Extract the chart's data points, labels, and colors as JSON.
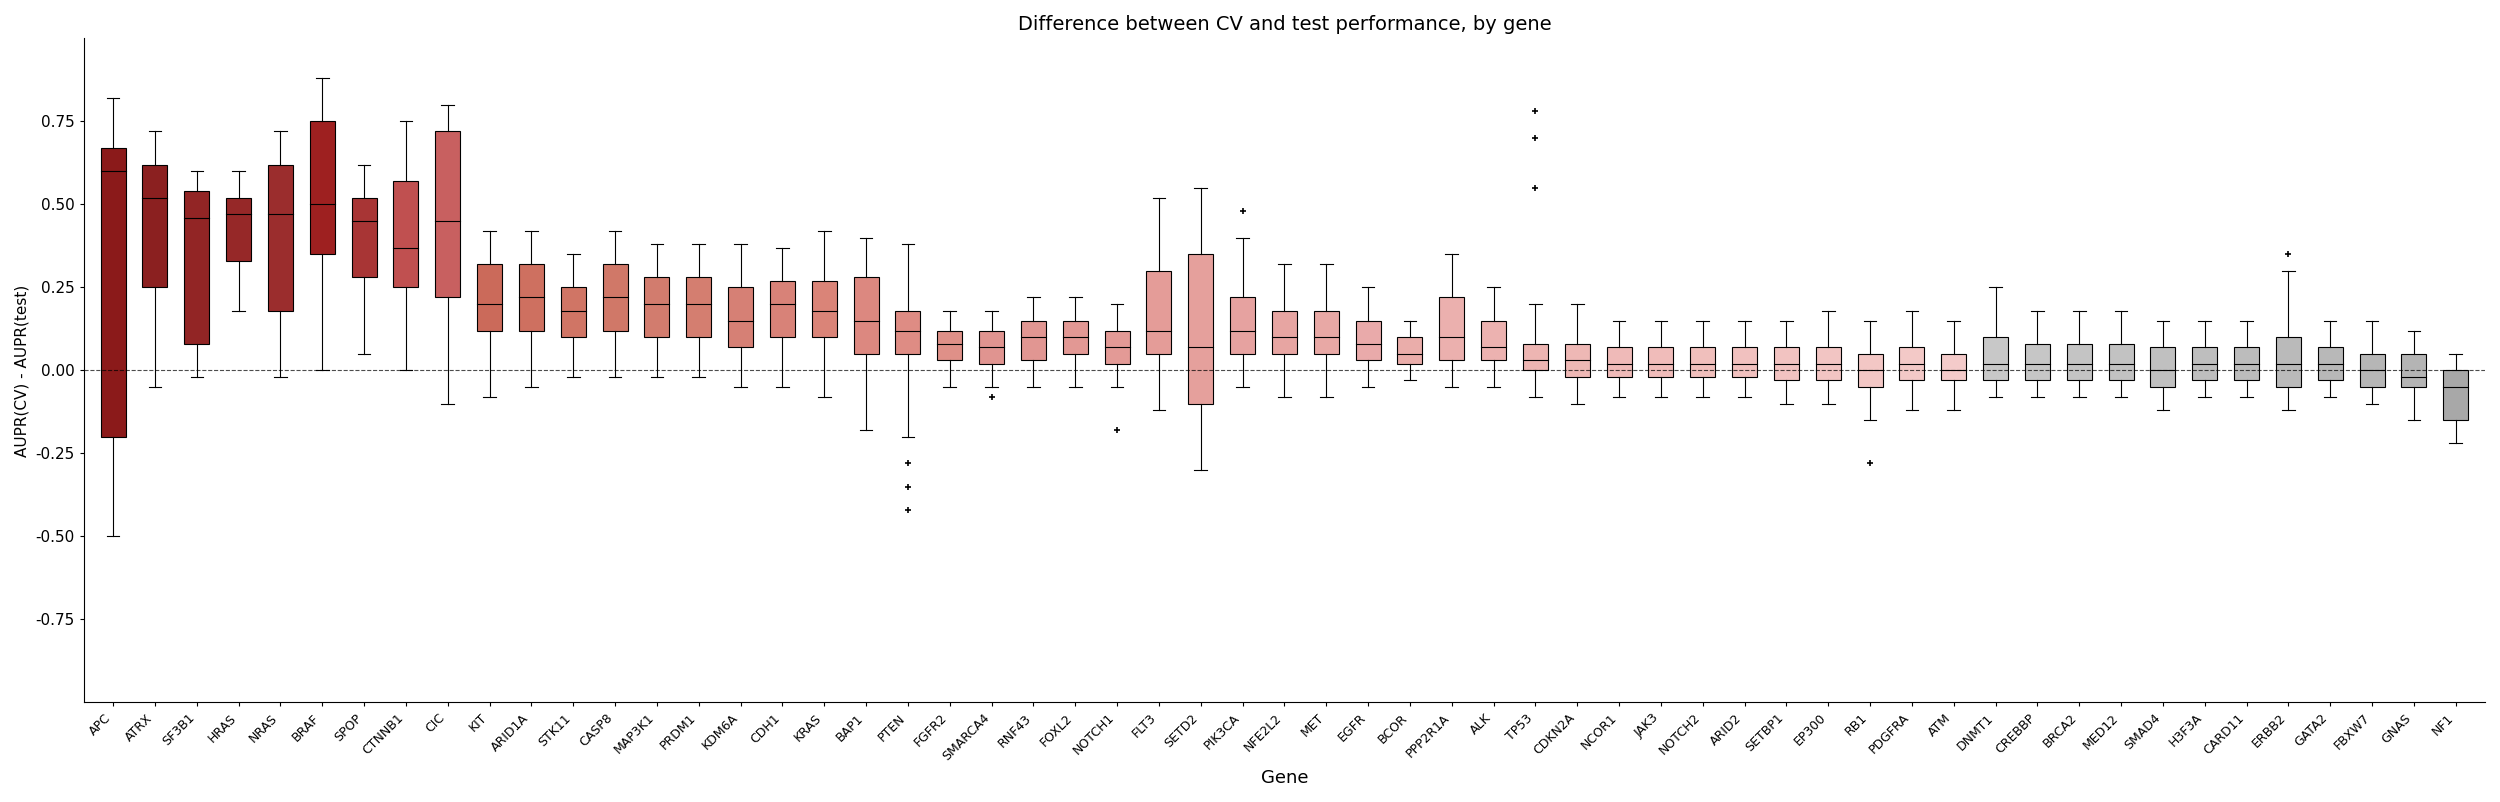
{
  "title": "Difference between CV and test performance, by gene",
  "xlabel": "Gene",
  "ylabel": "AUPR(CV) - AUPR(test)",
  "ylim": [
    -1.0,
    1.0
  ],
  "yticks": [
    -0.75,
    -0.5,
    -0.25,
    0.0,
    0.25,
    0.5,
    0.75
  ],
  "genes": [
    "APC",
    "ATRX",
    "SF3B1",
    "HRAS",
    "NRAS",
    "BRAF",
    "SPOP",
    "CTNNB1",
    "CIC",
    "KIT",
    "ARID1A",
    "STK11",
    "CASP8",
    "MAP3K1",
    "PRDM1",
    "KDM6A",
    "CDH1",
    "KRAS",
    "BAP1",
    "PTEN",
    "FGFR2",
    "SMARCA4",
    "RNF43",
    "FOXL2",
    "NOTCH1",
    "FLT3",
    "SETD2",
    "PIK3CA",
    "NFE2L2",
    "MET",
    "EGFR",
    "BCOR",
    "PPP2R1A",
    "ALK",
    "TP53",
    "CDKN2A",
    "NCOR1",
    "JAK3",
    "NOTCH2",
    "ARID2",
    "SETBP1",
    "EP300",
    "RB1",
    "PDGFRA",
    "ATM",
    "DNMT1",
    "CREBBP",
    "BRCA2",
    "MED12",
    "SMAD4",
    "H3F3A",
    "CARD11",
    "ERBB2",
    "GATA2",
    "FBXW7",
    "GNAS",
    "NF1"
  ],
  "box_data": {
    "APC": {
      "q1": -0.2,
      "median": 0.6,
      "q3": 0.67,
      "whislo": -0.5,
      "whishi": 0.82,
      "fliers": []
    },
    "ATRX": {
      "q1": 0.25,
      "median": 0.52,
      "q3": 0.62,
      "whislo": -0.05,
      "whishi": 0.72,
      "fliers": []
    },
    "SF3B1": {
      "q1": 0.08,
      "median": 0.46,
      "q3": 0.54,
      "whislo": -0.02,
      "whishi": 0.6,
      "fliers": []
    },
    "HRAS": {
      "q1": 0.33,
      "median": 0.47,
      "q3": 0.52,
      "whislo": 0.18,
      "whishi": 0.6,
      "fliers": []
    },
    "NRAS": {
      "q1": 0.18,
      "median": 0.47,
      "q3": 0.62,
      "whislo": -0.02,
      "whishi": 0.72,
      "fliers": []
    },
    "BRAF": {
      "q1": 0.35,
      "median": 0.5,
      "q3": 0.75,
      "whislo": 0.0,
      "whishi": 0.88,
      "fliers": []
    },
    "SPOP": {
      "q1": 0.28,
      "median": 0.45,
      "q3": 0.52,
      "whislo": 0.05,
      "whishi": 0.62,
      "fliers": []
    },
    "CTNNB1": {
      "q1": 0.25,
      "median": 0.37,
      "q3": 0.57,
      "whislo": 0.0,
      "whishi": 0.75,
      "fliers": []
    },
    "CIC": {
      "q1": 0.22,
      "median": 0.45,
      "q3": 0.72,
      "whislo": -0.1,
      "whishi": 0.8,
      "fliers": []
    },
    "KIT": {
      "q1": 0.12,
      "median": 0.2,
      "q3": 0.32,
      "whislo": -0.08,
      "whishi": 0.42,
      "fliers": []
    },
    "ARID1A": {
      "q1": 0.12,
      "median": 0.22,
      "q3": 0.32,
      "whislo": -0.05,
      "whishi": 0.42,
      "fliers": []
    },
    "STK11": {
      "q1": 0.1,
      "median": 0.18,
      "q3": 0.25,
      "whislo": -0.02,
      "whishi": 0.35,
      "fliers": []
    },
    "CASP8": {
      "q1": 0.12,
      "median": 0.22,
      "q3": 0.32,
      "whislo": -0.02,
      "whishi": 0.42,
      "fliers": []
    },
    "MAP3K1": {
      "q1": 0.1,
      "median": 0.2,
      "q3": 0.28,
      "whislo": -0.02,
      "whishi": 0.38,
      "fliers": []
    },
    "PRDM1": {
      "q1": 0.1,
      "median": 0.2,
      "q3": 0.28,
      "whislo": -0.02,
      "whishi": 0.38,
      "fliers": []
    },
    "KDM6A": {
      "q1": 0.07,
      "median": 0.15,
      "q3": 0.25,
      "whislo": -0.05,
      "whishi": 0.38,
      "fliers": []
    },
    "CDH1": {
      "q1": 0.1,
      "median": 0.2,
      "q3": 0.27,
      "whislo": -0.05,
      "whishi": 0.37,
      "fliers": []
    },
    "KRAS": {
      "q1": 0.1,
      "median": 0.18,
      "q3": 0.27,
      "whislo": -0.08,
      "whishi": 0.42,
      "fliers": []
    },
    "BAP1": {
      "q1": 0.05,
      "median": 0.15,
      "q3": 0.28,
      "whislo": -0.18,
      "whishi": 0.4,
      "fliers": []
    },
    "PTEN": {
      "q1": 0.05,
      "median": 0.12,
      "q3": 0.18,
      "whislo": -0.2,
      "whishi": 0.38,
      "fliers": [
        -0.28,
        -0.35,
        -0.42
      ]
    },
    "FGFR2": {
      "q1": 0.03,
      "median": 0.08,
      "q3": 0.12,
      "whislo": -0.05,
      "whishi": 0.18,
      "fliers": []
    },
    "SMARCA4": {
      "q1": 0.02,
      "median": 0.07,
      "q3": 0.12,
      "whislo": -0.05,
      "whishi": 0.18,
      "fliers": [
        -0.08
      ]
    },
    "RNF43": {
      "q1": 0.03,
      "median": 0.1,
      "q3": 0.15,
      "whislo": -0.05,
      "whishi": 0.22,
      "fliers": []
    },
    "FOXL2": {
      "q1": 0.05,
      "median": 0.1,
      "q3": 0.15,
      "whislo": -0.05,
      "whishi": 0.22,
      "fliers": []
    },
    "NOTCH1": {
      "q1": 0.02,
      "median": 0.07,
      "q3": 0.12,
      "whislo": -0.05,
      "whishi": 0.2,
      "fliers": [
        -0.18
      ]
    },
    "FLT3": {
      "q1": 0.05,
      "median": 0.12,
      "q3": 0.3,
      "whislo": -0.12,
      "whishi": 0.52,
      "fliers": []
    },
    "SETD2": {
      "q1": -0.1,
      "median": 0.07,
      "q3": 0.35,
      "whislo": -0.3,
      "whishi": 0.55,
      "fliers": []
    },
    "PIK3CA": {
      "q1": 0.05,
      "median": 0.12,
      "q3": 0.22,
      "whislo": -0.05,
      "whishi": 0.4,
      "fliers": [
        0.48
      ]
    },
    "NFE2L2": {
      "q1": 0.05,
      "median": 0.1,
      "q3": 0.18,
      "whislo": -0.08,
      "whishi": 0.32,
      "fliers": []
    },
    "MET": {
      "q1": 0.05,
      "median": 0.1,
      "q3": 0.18,
      "whislo": -0.08,
      "whishi": 0.32,
      "fliers": []
    },
    "EGFR": {
      "q1": 0.03,
      "median": 0.08,
      "q3": 0.15,
      "whislo": -0.05,
      "whishi": 0.25,
      "fliers": []
    },
    "BCOR": {
      "q1": 0.02,
      "median": 0.05,
      "q3": 0.1,
      "whislo": -0.03,
      "whishi": 0.15,
      "fliers": []
    },
    "PPP2R1A": {
      "q1": 0.03,
      "median": 0.1,
      "q3": 0.22,
      "whislo": -0.05,
      "whishi": 0.35,
      "fliers": []
    },
    "ALK": {
      "q1": 0.03,
      "median": 0.07,
      "q3": 0.15,
      "whislo": -0.05,
      "whishi": 0.25,
      "fliers": []
    },
    "TP53": {
      "q1": 0.0,
      "median": 0.03,
      "q3": 0.08,
      "whislo": -0.08,
      "whishi": 0.2,
      "fliers": [
        0.55,
        0.7,
        0.78
      ]
    },
    "CDKN2A": {
      "q1": -0.02,
      "median": 0.03,
      "q3": 0.08,
      "whislo": -0.1,
      "whishi": 0.2,
      "fliers": []
    },
    "NCOR1": {
      "q1": -0.02,
      "median": 0.02,
      "q3": 0.07,
      "whislo": -0.08,
      "whishi": 0.15,
      "fliers": []
    },
    "JAK3": {
      "q1": -0.02,
      "median": 0.02,
      "q3": 0.07,
      "whislo": -0.08,
      "whishi": 0.15,
      "fliers": []
    },
    "NOTCH2": {
      "q1": -0.02,
      "median": 0.02,
      "q3": 0.07,
      "whislo": -0.08,
      "whishi": 0.15,
      "fliers": []
    },
    "ARID2": {
      "q1": -0.02,
      "median": 0.02,
      "q3": 0.07,
      "whislo": -0.08,
      "whishi": 0.15,
      "fliers": []
    },
    "SETBP1": {
      "q1": -0.03,
      "median": 0.02,
      "q3": 0.07,
      "whislo": -0.1,
      "whishi": 0.15,
      "fliers": []
    },
    "EP300": {
      "q1": -0.03,
      "median": 0.02,
      "q3": 0.07,
      "whislo": -0.1,
      "whishi": 0.18,
      "fliers": []
    },
    "RB1": {
      "q1": -0.05,
      "median": 0.0,
      "q3": 0.05,
      "whislo": -0.15,
      "whishi": 0.15,
      "fliers": [
        -0.28
      ]
    },
    "PDGFRA": {
      "q1": -0.03,
      "median": 0.02,
      "q3": 0.07,
      "whislo": -0.12,
      "whishi": 0.18,
      "fliers": []
    },
    "ATM": {
      "q1": -0.03,
      "median": 0.0,
      "q3": 0.05,
      "whislo": -0.12,
      "whishi": 0.15,
      "fliers": []
    },
    "DNMT1": {
      "q1": -0.03,
      "median": 0.02,
      "q3": 0.1,
      "whislo": -0.08,
      "whishi": 0.25,
      "fliers": []
    },
    "CREBBP": {
      "q1": -0.03,
      "median": 0.02,
      "q3": 0.08,
      "whislo": -0.08,
      "whishi": 0.18,
      "fliers": []
    },
    "BRCA2": {
      "q1": -0.03,
      "median": 0.02,
      "q3": 0.08,
      "whislo": -0.08,
      "whishi": 0.18,
      "fliers": []
    },
    "MED12": {
      "q1": -0.03,
      "median": 0.02,
      "q3": 0.08,
      "whislo": -0.08,
      "whishi": 0.18,
      "fliers": []
    },
    "SMAD4": {
      "q1": -0.05,
      "median": 0.0,
      "q3": 0.07,
      "whislo": -0.12,
      "whishi": 0.15,
      "fliers": []
    },
    "H3F3A": {
      "q1": -0.03,
      "median": 0.02,
      "q3": 0.07,
      "whislo": -0.08,
      "whishi": 0.15,
      "fliers": []
    },
    "CARD11": {
      "q1": -0.03,
      "median": 0.02,
      "q3": 0.07,
      "whislo": -0.08,
      "whishi": 0.15,
      "fliers": []
    },
    "ERBB2": {
      "q1": -0.05,
      "median": 0.02,
      "q3": 0.1,
      "whislo": -0.12,
      "whishi": 0.3,
      "fliers": [
        0.35
      ]
    },
    "GATA2": {
      "q1": -0.03,
      "median": 0.02,
      "q3": 0.07,
      "whislo": -0.08,
      "whishi": 0.15,
      "fliers": []
    },
    "FBXW7": {
      "q1": -0.05,
      "median": 0.0,
      "q3": 0.05,
      "whislo": -0.1,
      "whishi": 0.15,
      "fliers": []
    },
    "GNAS": {
      "q1": -0.05,
      "median": -0.02,
      "q3": 0.05,
      "whislo": -0.15,
      "whishi": 0.12,
      "fliers": []
    },
    "NF1": {
      "q1": -0.15,
      "median": -0.05,
      "q3": 0.0,
      "whislo": -0.22,
      "whishi": 0.05,
      "fliers": []
    }
  },
  "color_scale": [
    {
      "gene": "APC",
      "color": "#8B1A1A"
    },
    {
      "gene": "ATRX",
      "color": "#8B2020"
    },
    {
      "gene": "SF3B1",
      "color": "#922525"
    },
    {
      "gene": "HRAS",
      "color": "#962828"
    },
    {
      "gene": "NRAS",
      "color": "#9B2D2D"
    },
    {
      "gene": "BRAF",
      "color": "#9E2020"
    },
    {
      "gene": "SPOP",
      "color": "#A83535"
    },
    {
      "gene": "CTNNB1",
      "color": "#C05050"
    },
    {
      "gene": "CIC",
      "color": "#C86060"
    },
    {
      "gene": "KIT",
      "color": "#CB6A5A"
    },
    {
      "gene": "ARID1A",
      "color": "#CE7060"
    },
    {
      "gene": "STK11",
      "color": "#D07565"
    },
    {
      "gene": "CASP8",
      "color": "#D07868"
    },
    {
      "gene": "MAP3K1",
      "color": "#D27C6E"
    },
    {
      "gene": "PRDM1",
      "color": "#D47E70"
    },
    {
      "gene": "KDM6A",
      "color": "#D68075"
    },
    {
      "gene": "CDH1",
      "color": "#D88278"
    },
    {
      "gene": "KRAS",
      "color": "#DA8478"
    },
    {
      "gene": "BAP1",
      "color": "#DC8880"
    },
    {
      "gene": "PTEN",
      "color": "#DE8C84"
    },
    {
      "gene": "FGFR2",
      "color": "#DF9088"
    },
    {
      "gene": "SMARCA4",
      "color": "#E09490"
    },
    {
      "gene": "RNF43",
      "color": "#E19692"
    },
    {
      "gene": "FOXL2",
      "color": "#E29894"
    },
    {
      "gene": "NOTCH1",
      "color": "#E39A96"
    },
    {
      "gene": "FLT3",
      "color": "#E49C98"
    },
    {
      "gene": "SETD2",
      "color": "#E5A09C"
    },
    {
      "gene": "PIK3CA",
      "color": "#E6A2A0"
    },
    {
      "gene": "NFE2L2",
      "color": "#E7A5A2"
    },
    {
      "gene": "MET",
      "color": "#E8A8A5"
    },
    {
      "gene": "EGFR",
      "color": "#E9AAAA"
    },
    {
      "gene": "BCOR",
      "color": "#EAADAA"
    },
    {
      "gene": "PPP2R1A",
      "color": "#EBB0AE"
    },
    {
      "gene": "ALK",
      "color": "#ECB2B0"
    },
    {
      "gene": "TP53",
      "color": "#EDB5B2"
    },
    {
      "gene": "CDKN2A",
      "color": "#EEB8B5"
    },
    {
      "gene": "NCOR1",
      "color": "#EFBAB8"
    },
    {
      "gene": "JAK3",
      "color": "#F0BCBA"
    },
    {
      "gene": "NOTCH2",
      "color": "#F0BFBC"
    },
    {
      "gene": "ARID2",
      "color": "#F1C1BF"
    },
    {
      "gene": "SETBP1",
      "color": "#F2C3C1"
    },
    {
      "gene": "EP300",
      "color": "#F2C5C3"
    },
    {
      "gene": "RB1",
      "color": "#F3C7C5"
    },
    {
      "gene": "PDGFRA",
      "color": "#F3C9C7"
    },
    {
      "gene": "ATM",
      "color": "#F4CBCA"
    },
    {
      "gene": "DNMT1",
      "color": "#C8C8C8"
    },
    {
      "gene": "CREBBP",
      "color": "#C6C6C6"
    },
    {
      "gene": "BRCA2",
      "color": "#C4C4C4"
    },
    {
      "gene": "MED12",
      "color": "#C2C2C2"
    },
    {
      "gene": "SMAD4",
      "color": "#C0C0C0"
    },
    {
      "gene": "H3F3A",
      "color": "#BEBEBE"
    },
    {
      "gene": "CARD11",
      "color": "#BCBCBC"
    },
    {
      "gene": "ERBB2",
      "color": "#BABABA"
    },
    {
      "gene": "GATA2",
      "color": "#B8B8B8"
    },
    {
      "gene": "FBXW7",
      "color": "#B6B6B6"
    },
    {
      "gene": "GNAS",
      "color": "#B4B4B4"
    },
    {
      "gene": "NF1",
      "color": "#A8A8A8"
    }
  ]
}
